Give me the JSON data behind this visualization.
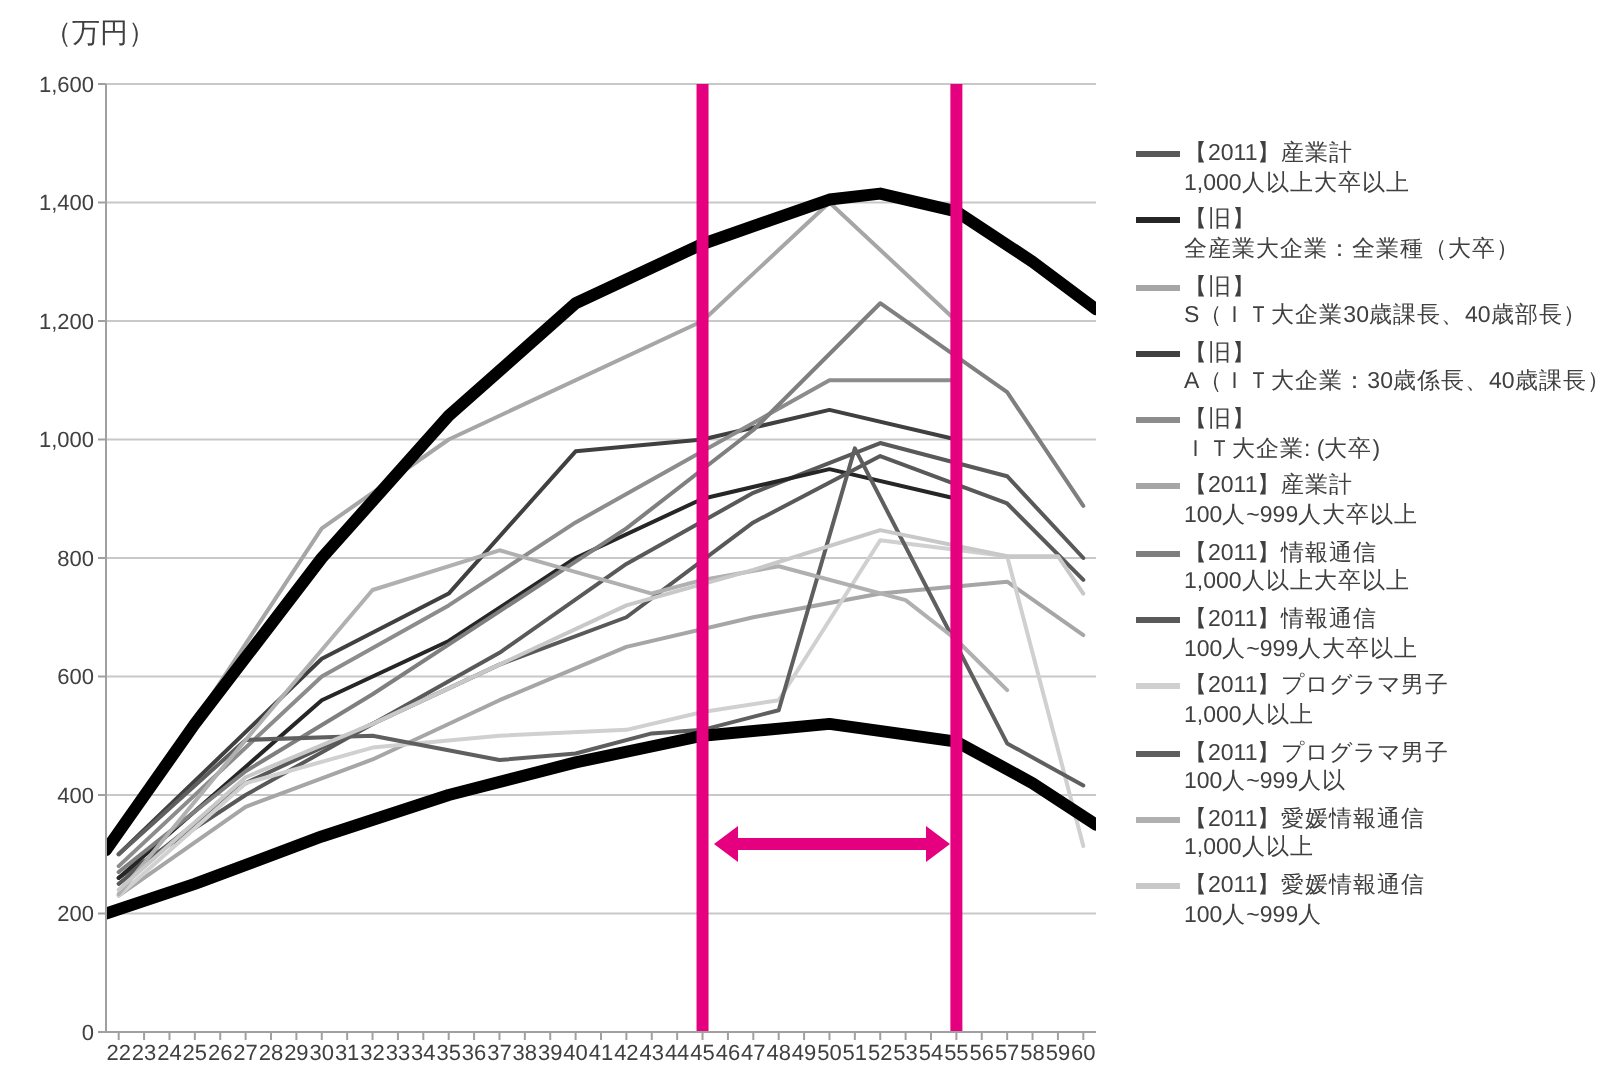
{
  "chart_data": {
    "type": "line",
    "ylabel": "（万円）",
    "xlim": [
      21.5,
      60.5
    ],
    "xticks": [
      22,
      23,
      24,
      25,
      26,
      27,
      28,
      29,
      30,
      31,
      32,
      33,
      34,
      35,
      36,
      37,
      38,
      39,
      40,
      41,
      42,
      43,
      44,
      45,
      46,
      47,
      48,
      49,
      50,
      51,
      52,
      53,
      54,
      55,
      56,
      57,
      58,
      59,
      60
    ],
    "ylim": [
      0,
      1600
    ],
    "yticks": [
      {
        "value": 0,
        "label": "0"
      },
      {
        "value": 200,
        "label": "200"
      },
      {
        "value": 400,
        "label": "400"
      },
      {
        "value": 600,
        "label": "600"
      },
      {
        "value": 800,
        "label": "800"
      },
      {
        "value": 1000,
        "label": "1,000"
      },
      {
        "value": 1200,
        "label": "1,200"
      },
      {
        "value": 1400,
        "label": "1,400"
      },
      {
        "value": 1600,
        "label": "1,600"
      }
    ],
    "grid": "y",
    "legend": "right",
    "marker": "none",
    "line_style": "solid",
    "series": [
      {
        "name": "【2011】産業計\n1,000人以上大卒以上",
        "color": "#595959",
        "x": [
          22,
          27,
          32,
          37,
          42,
          47,
          52,
          57,
          60
        ],
        "values": [
          260,
          400,
          520,
          640,
          790,
          910,
          994,
          938,
          800
        ]
      },
      {
        "name": "【旧】全産業大企業：全業種（大卒）",
        "color": "#262626",
        "x": [
          22,
          30,
          35,
          40,
          45,
          50,
          55
        ],
        "values": [
          260,
          560,
          660,
          800,
          900,
          950,
          900
        ]
      },
      {
        "name": "【旧】S（ＩＴ大企業30歳課長、40歳部長）",
        "color": "#a6a6a6",
        "x": [
          22,
          30,
          35,
          45,
          50,
          55
        ],
        "values": [
          330,
          850,
          1000,
          1200,
          1400,
          1200
        ]
      },
      {
        "name": "【旧】A（ＩＴ大企業：30歳係長、40歳課長）",
        "color": "#404040",
        "x": [
          22,
          30,
          35,
          40,
          45,
          50,
          55
        ],
        "values": [
          300,
          630,
          740,
          980,
          1000,
          1050,
          1000
        ]
      },
      {
        "name": "【旧】ＩＴ大企業: (大卒)",
        "color": "#8c8c8c",
        "x": [
          22,
          30,
          35,
          40,
          45,
          50,
          55
        ],
        "values": [
          280,
          600,
          720,
          860,
          980,
          1100,
          1100
        ]
      },
      {
        "name": "【2011】産業計\n100人~999人大卒以上",
        "color": "#a6a6a6",
        "x": [
          22,
          27,
          32,
          37,
          42,
          47,
          52,
          57,
          60
        ],
        "values": [
          230,
          380,
          460,
          560,
          650,
          700,
          740,
          760,
          670
        ]
      },
      {
        "name": "【2011】情報通信\n1,000人以上大卒以上",
        "color": "#7f7f7f",
        "x": [
          22,
          27,
          32,
          37,
          42,
          47,
          52,
          57,
          60
        ],
        "values": [
          270,
          440,
          570,
          710,
          850,
          1016,
          1230,
          1080,
          888
        ]
      },
      {
        "name": "【2011】情報通信\n100人~999人大卒以上",
        "color": "#595959",
        "x": [
          22,
          27,
          32,
          37,
          42,
          47,
          52,
          57,
          60
        ],
        "values": [
          250,
          420,
          520,
          620,
          700,
          860,
          972,
          892,
          763
        ]
      },
      {
        "name": "【2011】プログラマ男子\n1,000人以上",
        "color": "#d0d0d0",
        "x": [
          22,
          27,
          32,
          37,
          42,
          45,
          48,
          52,
          57,
          60
        ],
        "values": [
          230,
          420,
          480,
          500,
          510,
          540,
          560,
          830,
          803,
          314
        ]
      },
      {
        "name": "【2011】プログラマ男子\n100人~999人以",
        "color": "#5f5f5f",
        "x": [
          22,
          27,
          32,
          37,
          40,
          43,
          45,
          48,
          51,
          57,
          60
        ],
        "values": [
          300,
          493,
          500,
          459,
          470,
          504,
          510,
          543,
          985,
          487,
          416
        ]
      },
      {
        "name": "【2011】愛媛情報通信\n1,000人以上",
        "color": "#b0b0b0",
        "x": [
          22,
          27,
          32,
          37,
          43,
          45,
          48,
          53,
          55,
          57
        ],
        "values": [
          233,
          493,
          746,
          813,
          740,
          763,
          786,
          729,
          662,
          577
        ]
      },
      {
        "name": "【2011】愛媛情報通信\n100人~999人",
        "color": "#c8c8c8",
        "x": [
          22,
          27,
          32,
          37,
          42,
          47,
          52,
          57,
          59,
          60
        ],
        "values": [
          240,
          430,
          520,
          620,
          720,
          780,
          847,
          803,
          803,
          740
        ]
      },
      {
        "color": "#000000",
        "x": [
          21.5,
          25,
          30,
          35,
          40,
          45,
          50,
          52,
          55,
          58,
          60.5
        ],
        "values": [
          307,
          520,
          800,
          1040,
          1230,
          1330,
          1405,
          1415,
          1385,
          1300,
          1220
        ]
      },
      {
        "color": "#000000",
        "x": [
          21.5,
          25,
          30,
          35,
          40,
          45,
          50,
          55,
          58,
          60.5
        ],
        "values": [
          200,
          250,
          330,
          400,
          455,
          500,
          520,
          490,
          420,
          350
        ]
      }
    ],
    "ref_lines": [
      {
        "axis": "x",
        "value": 45,
        "color": "#e4007f"
      },
      {
        "axis": "x",
        "value": 55,
        "color": "#e4007f"
      }
    ]
  }
}
